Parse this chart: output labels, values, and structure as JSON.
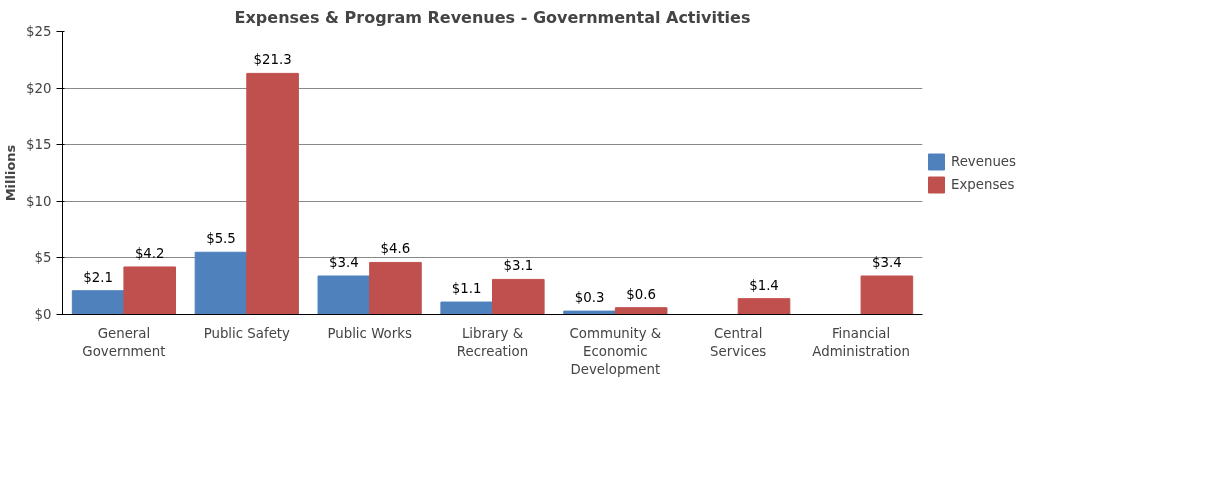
{
  "chart_data": {
    "type": "bar",
    "title": "Expenses & Program Revenues - Governmental Activities",
    "ylabel": "Millions",
    "categories": [
      "General Government",
      "Public Safety",
      "Public Works",
      "Library & Recreation",
      "Community & Economic Development",
      "Central Services",
      "Financial Administration"
    ],
    "series": [
      {
        "name": "Revenues",
        "color": "#4f81bd",
        "values": [
          2.1,
          5.5,
          3.4,
          1.1,
          0.3,
          null,
          null
        ],
        "value_labels": [
          "$2.1",
          "$5.5",
          "$3.4",
          "$1.1",
          "$0.3",
          null,
          null
        ]
      },
      {
        "name": "Expenses",
        "color": "#c0504d",
        "values": [
          4.2,
          21.3,
          4.6,
          3.1,
          0.6,
          1.4,
          3.4
        ],
        "value_labels": [
          "$4.2",
          "$21.3",
          "$4.6",
          "$3.1",
          "$0.6",
          "$1.4",
          "$3.4"
        ]
      }
    ],
    "ylim": [
      0,
      25
    ],
    "yticks": [
      {
        "value": 0,
        "label": "$0"
      },
      {
        "value": 5,
        "label": "$5"
      },
      {
        "value": 10,
        "label": "$10"
      },
      {
        "value": 15,
        "label": "$15"
      },
      {
        "value": 20,
        "label": "$20"
      },
      {
        "value": 25,
        "label": "$25"
      }
    ],
    "grid": "y",
    "legend": "right"
  }
}
